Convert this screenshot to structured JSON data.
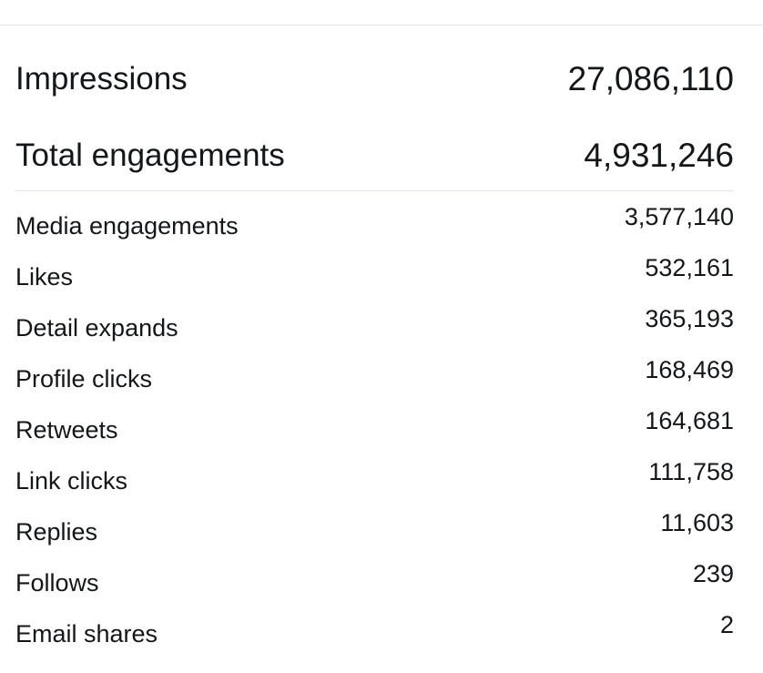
{
  "summary": {
    "impressions": {
      "label": "Impressions",
      "value": "27,086,110"
    },
    "total_engagements": {
      "label": "Total engagements",
      "value": "4,931,246"
    }
  },
  "metrics": [
    {
      "label": "Media engagements",
      "value": "3,577,140"
    },
    {
      "label": "Likes",
      "value": "532,161"
    },
    {
      "label": "Detail expands",
      "value": "365,193"
    },
    {
      "label": "Profile clicks",
      "value": "168,469"
    },
    {
      "label": "Retweets",
      "value": "164,681"
    },
    {
      "label": "Link clicks",
      "value": "111,758"
    },
    {
      "label": "Replies",
      "value": "11,603"
    },
    {
      "label": "Follows",
      "value": "239"
    },
    {
      "label": "Email shares",
      "value": "2"
    }
  ],
  "colors": {
    "text": "#14171a",
    "divider": "#e1e8ed",
    "background": "#ffffff"
  }
}
